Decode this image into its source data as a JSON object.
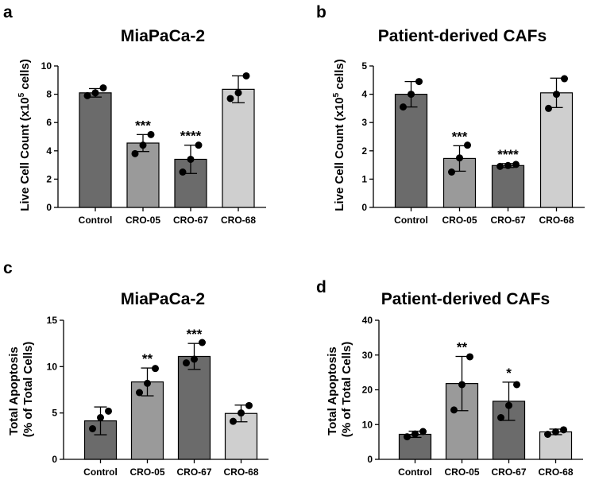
{
  "colors": {
    "Control": "#6b6b6b",
    "CRO-05": "#9a9a9a",
    "CRO-67": "#6b6b6b",
    "CRO-68": "#cfcfcf",
    "bar_stroke": "#000000",
    "point": "#000000"
  },
  "chart_data": [
    {
      "panel": "a",
      "type": "bar",
      "title": "MiaPaCa-2",
      "ylabel_lines": [
        "Live Cell Count (x10",
        "5",
        " cells)"
      ],
      "ylabel_superscript": true,
      "xlabel": "",
      "categories": [
        "Control",
        "CRO-05",
        "CRO-67",
        "CRO-68"
      ],
      "values": [
        8.1,
        4.55,
        3.4,
        8.35
      ],
      "errors": [
        0.3,
        0.6,
        1.0,
        0.95
      ],
      "points": [
        [
          7.9,
          8.1,
          8.45
        ],
        [
          3.8,
          4.4,
          5.15
        ],
        [
          2.5,
          3.4,
          4.4
        ],
        [
          7.7,
          8.1,
          9.3
        ]
      ],
      "significance": [
        "",
        "***",
        "****",
        ""
      ],
      "ylim": [
        0,
        10
      ],
      "yticks": [
        0,
        2,
        4,
        6,
        8,
        10
      ],
      "grid": false,
      "legend": "none"
    },
    {
      "panel": "b",
      "type": "bar",
      "title": "Patient-derived CAFs",
      "ylabel_lines": [
        "Live Cell Count (x10",
        "5",
        " cells)"
      ],
      "ylabel_superscript": true,
      "xlabel": "",
      "categories": [
        "Control",
        "CRO-05",
        "CRO-67",
        "CRO-68"
      ],
      "values": [
        4.0,
        1.73,
        1.48,
        4.05
      ],
      "errors": [
        0.45,
        0.45,
        0.07,
        0.52
      ],
      "points": [
        [
          3.55,
          4.0,
          4.45
        ],
        [
          1.25,
          1.75,
          2.2
        ],
        [
          1.45,
          1.48,
          1.52
        ],
        [
          3.5,
          4.0,
          4.55
        ]
      ],
      "significance": [
        "",
        "***",
        "****",
        ""
      ],
      "ylim": [
        0,
        5
      ],
      "yticks": [
        0,
        1,
        2,
        3,
        4,
        5
      ],
      "grid": false,
      "legend": "none"
    },
    {
      "panel": "c",
      "type": "bar",
      "title": "MiaPaCa-2",
      "ylabel_lines": [
        "Total Apoptosis",
        "(% of Total Cells)"
      ],
      "ylabel_superscript": false,
      "xlabel": "",
      "categories": [
        "Control",
        "CRO-05",
        "CRO-67",
        "CRO-68"
      ],
      "values": [
        4.15,
        8.35,
        11.1,
        4.95
      ],
      "errors": [
        1.5,
        1.5,
        1.4,
        0.9
      ],
      "points": [
        [
          3.3,
          4.5,
          5.2
        ],
        [
          7.2,
          8.2,
          9.8
        ],
        [
          10.4,
          10.8,
          12.6
        ],
        [
          4.1,
          5.0,
          5.8
        ]
      ],
      "significance": [
        "",
        "**",
        "***",
        ""
      ],
      "ylim": [
        0,
        15
      ],
      "yticks": [
        0,
        5,
        10,
        15
      ],
      "grid": false,
      "legend": "none"
    },
    {
      "panel": "d",
      "type": "bar",
      "title": "Patient-derived CAFs",
      "ylabel_lines": [
        "Total Apoptosis",
        "(% of Total Cells)"
      ],
      "ylabel_superscript": false,
      "xlabel": "",
      "categories": [
        "Control",
        "CRO-05",
        "CRO-67",
        "CRO-68"
      ],
      "values": [
        7.2,
        21.8,
        16.7,
        7.9
      ],
      "errors": [
        0.9,
        7.8,
        5.5,
        0.8
      ],
      "points": [
        [
          6.5,
          7.3,
          8.0
        ],
        [
          14.2,
          21.5,
          29.5
        ],
        [
          12.0,
          15.5,
          21.5
        ],
        [
          7.2,
          7.9,
          8.5
        ]
      ],
      "significance": [
        "",
        "**",
        "*",
        ""
      ],
      "ylim": [
        0,
        40
      ],
      "yticks": [
        0,
        10,
        20,
        30,
        40
      ],
      "grid": false,
      "legend": "none"
    }
  ]
}
